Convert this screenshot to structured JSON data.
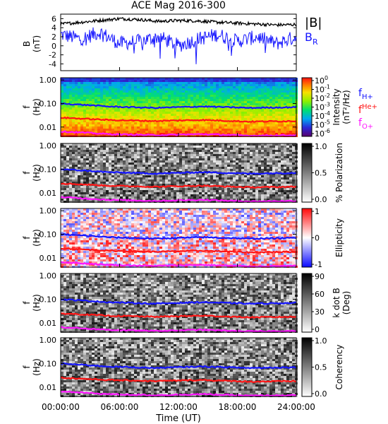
{
  "title": "ACE Mag 2016-300",
  "xlabel": "Time (UT)",
  "x_ticks": [
    "00:00:00",
    "06:00:00",
    "12:00:00",
    "18:00:00",
    "24:00:00"
  ],
  "colors": {
    "B_total": "#000000",
    "B_R": "#1515ff",
    "f_H": "#1515ff",
    "f_He": "#ff1515",
    "f_O": "#ff14ff"
  },
  "chart_data": [
    {
      "type": "line",
      "panel": "field",
      "ylabel_top": "B",
      "ylabel_bottom": "(nT)",
      "ylim": [
        -5.5,
        7
      ],
      "y_ticks": [
        "6",
        "4",
        "2",
        "0",
        "-2",
        "-4"
      ],
      "x_range_hours": [
        0,
        24
      ],
      "series": [
        {
          "name": "|B|",
          "samples_hours": [
            0,
            2,
            4,
            6,
            8,
            10,
            12,
            14,
            16,
            18,
            20,
            22,
            24
          ],
          "values": [
            4.8,
            5.2,
            5.6,
            6.0,
            5.8,
            5.4,
            5.6,
            5.5,
            5.2,
            5.0,
            4.8,
            4.6,
            4.7
          ]
        },
        {
          "name": "B",
          "subscript": "R",
          "samples_hours": [
            0,
            2,
            4,
            6,
            8,
            10,
            12,
            14,
            16,
            18,
            20,
            22,
            24
          ],
          "values": [
            2.5,
            1.5,
            3.0,
            0.5,
            1.0,
            2.0,
            0.0,
            1.5,
            2.5,
            1.0,
            2.0,
            0.5,
            2.0
          ],
          "min_excursion": -5
        }
      ]
    },
    {
      "type": "heatmap",
      "panel": "intensity",
      "ylabel_top": "f",
      "ylabel_bottom": "(Hz)",
      "y_ticks": [
        "1.00",
        "0.10",
        "0.01"
      ],
      "colorbar": {
        "label_top": "Intensity",
        "label_bottom": "(nT²/Hz)",
        "ticks": [
          {
            "base": "10",
            "exp": "0"
          },
          {
            "base": "10",
            "exp": "-1"
          },
          {
            "base": "10",
            "exp": "-2"
          },
          {
            "base": "10",
            "exp": "-3"
          },
          {
            "base": "10",
            "exp": "-4"
          },
          {
            "base": "10",
            "exp": "-5"
          },
          {
            "base": "10",
            "exp": "-6"
          }
        ]
      },
      "legend": [
        {
          "base": "f",
          "sub": "H+",
          "sup": "",
          "color": "#1515ff"
        },
        {
          "base": "f",
          "sub": "",
          "sup": "He+",
          "color": "#ff1515"
        },
        {
          "base": "f",
          "sub": "O+",
          "sup": "",
          "color": "#ff14ff"
        }
      ]
    },
    {
      "type": "heatmap",
      "panel": "polarization",
      "ylabel_top": "f",
      "ylabel_bottom": "(Hz)",
      "y_ticks": [
        "1.00",
        "0.10",
        "0.01"
      ],
      "colorbar": {
        "label": "% Polarization",
        "ticks": [
          "1.0",
          "0.5",
          "0.0"
        ]
      }
    },
    {
      "type": "heatmap",
      "panel": "ellipticity",
      "ylabel_top": "f",
      "ylabel_bottom": "(Hz)",
      "y_ticks": [
        "1.00",
        "0.10",
        "0.01"
      ],
      "colorbar": {
        "label": "Ellipticity",
        "ticks": [
          "1",
          "0",
          "-1"
        ]
      }
    },
    {
      "type": "heatmap",
      "panel": "kdotb",
      "ylabel_top": "f",
      "ylabel_bottom": "(Hz)",
      "y_ticks": [
        "1.00",
        "0.10",
        "0.01"
      ],
      "colorbar": {
        "label_top": "k dot B",
        "label_bottom": "(Deg)",
        "ticks": [
          "90",
          "60",
          "30",
          "0"
        ]
      }
    },
    {
      "type": "heatmap",
      "panel": "coherency",
      "ylabel_top": "f",
      "ylabel_bottom": "(Hz)",
      "y_ticks": [
        "1.00",
        "0.10",
        "0.01"
      ],
      "colorbar": {
        "label": "Coherency",
        "ticks": [
          "1.0",
          "0.5",
          "0.0"
        ]
      }
    }
  ],
  "gyro_lines": {
    "f_H": {
      "freq_hz": [
        0.1,
        0.075,
        0.065,
        0.075,
        0.065,
        0.07
      ]
    },
    "f_He": {
      "freq_hz": [
        0.025,
        0.02,
        0.018,
        0.02,
        0.017,
        0.018
      ]
    },
    "f_O": {
      "freq_hz": [
        0.0065,
        0.005,
        0.0045,
        0.005,
        0.0043,
        0.0045
      ]
    }
  }
}
